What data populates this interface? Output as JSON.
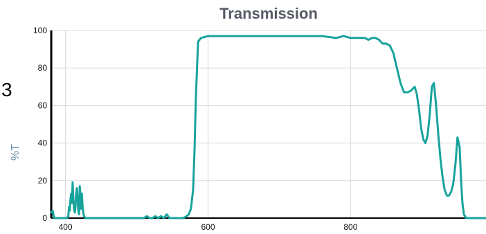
{
  "chart_data": {
    "type": "line",
    "title": "Transmission",
    "xlabel": "",
    "ylabel": "%T",
    "xlim": [
      380,
      990
    ],
    "ylim": [
      0,
      100
    ],
    "xticks": [
      400,
      600,
      800
    ],
    "yticks": [
      0,
      20,
      40,
      60,
      80,
      100
    ],
    "grid": true,
    "colors": {
      "line": "#17a39c",
      "title": "#555b66",
      "ylabel": "#6a8fa6",
      "grid": "#d9d9d9",
      "axis": "#000000"
    },
    "series": [
      {
        "x": [
          380,
          382,
          384,
          386,
          388,
          390,
          392,
          394,
          396,
          398,
          400,
          402,
          404,
          405,
          406,
          407,
          408,
          409,
          410,
          411,
          412,
          413,
          414,
          415,
          416,
          417,
          418,
          419,
          420,
          421,
          422,
          423,
          424,
          425,
          426,
          428,
          430,
          440,
          460,
          480,
          500,
          505,
          510,
          514,
          518,
          522,
          526,
          530,
          534,
          538,
          542,
          546,
          550,
          555,
          560,
          565,
          570,
          573,
          576,
          579,
          581,
          583,
          586,
          590,
          600,
          610,
          620,
          640,
          660,
          680,
          700,
          720,
          740,
          760,
          780,
          790,
          800,
          810,
          820,
          825,
          830,
          835,
          840,
          845,
          850,
          855,
          860,
          865,
          870,
          875,
          880,
          885,
          890,
          893,
          896,
          899,
          902,
          905,
          908,
          911,
          914,
          917,
          920,
          923,
          926,
          929,
          932,
          935,
          938,
          941,
          944,
          947,
          950,
          953,
          955,
          957,
          959,
          962,
          965,
          968,
          971,
          974,
          977,
          980,
          985,
          990
        ],
        "values": [
          3,
          4,
          0,
          0,
          0,
          0,
          0,
          0,
          0,
          0,
          0,
          0,
          1,
          6,
          4,
          10,
          13,
          8,
          19,
          11,
          5,
          3,
          6,
          13,
          16,
          10,
          4,
          2,
          17,
          12,
          5,
          13,
          6,
          3,
          1,
          0,
          0,
          0,
          0,
          0,
          0,
          0,
          0,
          1,
          0,
          0,
          1,
          0,
          1,
          0,
          2,
          0,
          0,
          0,
          0,
          0,
          1,
          2,
          5,
          15,
          35,
          65,
          94,
          96,
          97,
          97,
          97,
          97,
          97,
          97,
          97,
          97,
          97,
          97,
          96,
          97,
          96,
          96,
          96,
          95,
          96,
          96,
          95,
          93,
          93,
          92,
          88,
          80,
          72,
          67,
          67,
          68,
          70,
          66,
          58,
          48,
          42,
          40,
          44,
          55,
          70,
          72,
          60,
          45,
          32,
          22,
          15,
          12,
          12,
          14,
          18,
          28,
          43,
          38,
          20,
          8,
          2,
          0,
          0,
          0,
          0,
          0,
          0,
          0,
          0,
          0
        ]
      }
    ]
  },
  "annotations": {
    "side_mark": "3"
  }
}
